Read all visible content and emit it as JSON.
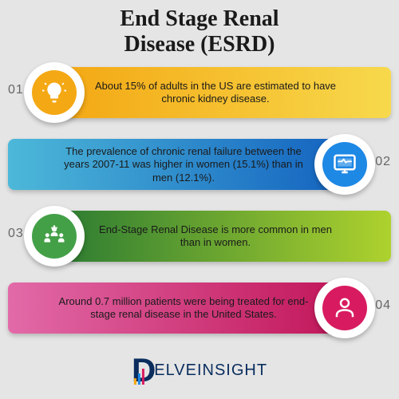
{
  "title": {
    "line1": "End Stage Renal",
    "line2": "Disease (ESRD)",
    "fontsize": 28,
    "color": "#1a1a1a"
  },
  "background_color": "#e5e5e5",
  "items": [
    {
      "num": "01",
      "side": "left",
      "text": "About 15% of adults in the US are estimated to have chronic kidney disease.",
      "gradient_from": "#f4a814",
      "gradient_to": "#f7d94c",
      "circle_outer": "#ffffff",
      "circle_inner": "#f4a814",
      "icon": "lightbulb",
      "icon_color": "#ffffff"
    },
    {
      "num": "02",
      "side": "right",
      "text": "The prevalence of chronic renal failure between the years 2007-11 was higher in women (15.1%) than in men (12.1%).",
      "gradient_from": "#1565c0",
      "gradient_to": "#4db8d9",
      "circle_outer": "#ffffff",
      "circle_inner": "#1e88e5",
      "icon": "monitor",
      "icon_color": "#ffffff"
    },
    {
      "num": "03",
      "side": "left",
      "text": "End-Stage Renal Disease is more common in men than in women.",
      "gradient_from": "#2e7d32",
      "gradient_to": "#aed22e",
      "circle_outer": "#ffffff",
      "circle_inner": "#43a047",
      "icon": "people",
      "icon_color": "#ffffff"
    },
    {
      "num": "04",
      "side": "right",
      "text": "Around 0.7 million patients were being treated for end-stage renal disease in the United States.",
      "gradient_from": "#c2185b",
      "gradient_to": "#e26aa8",
      "circle_outer": "#ffffff",
      "circle_inner": "#d81b60",
      "icon": "person",
      "icon_color": "#ffffff"
    }
  ],
  "logo": {
    "text": "ELVEINSIGHT",
    "d_color": "#0a2d5e",
    "text_color": "#0a2d5e",
    "bars": [
      {
        "h": 8,
        "c": "#f4a814"
      },
      {
        "h": 14,
        "c": "#1e88e5"
      },
      {
        "h": 20,
        "c": "#d81b60"
      }
    ]
  }
}
